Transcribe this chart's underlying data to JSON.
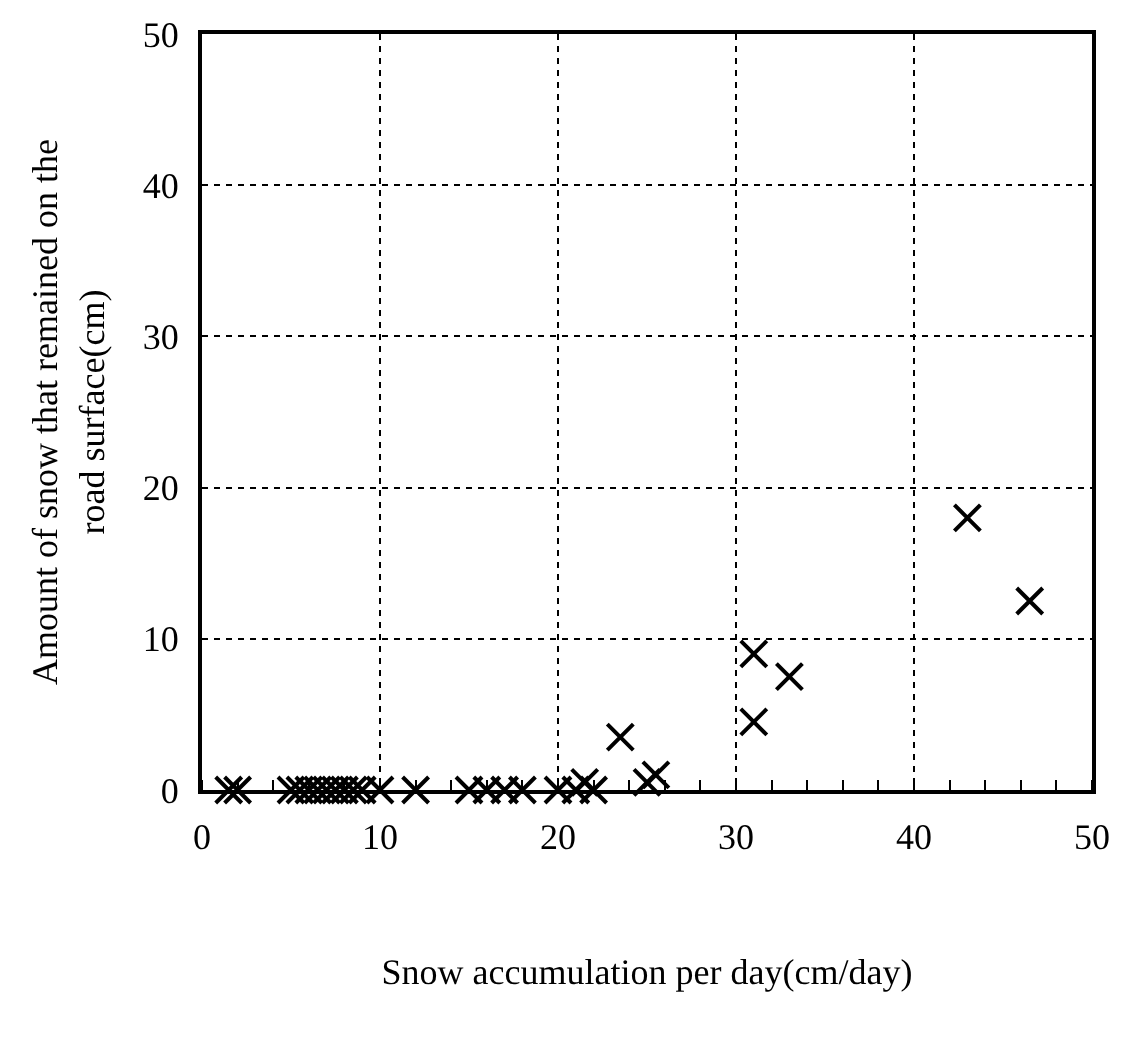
{
  "chart_data": {
    "type": "scatter",
    "xlabel": "Snow accumulation per day(cm/day)",
    "ylabel": "Amount of snow that remained on the road surface(cm)",
    "x": [
      1.5,
      2,
      5,
      5.5,
      6,
      6.5,
      7,
      7.5,
      8,
      8.5,
      9,
      10,
      12,
      15,
      16,
      17,
      18,
      20,
      21,
      22,
      21.5,
      23.5,
      25,
      25.5,
      31,
      31,
      33,
      43,
      46.5
    ],
    "values": [
      0,
      0,
      0,
      0,
      0,
      0,
      0,
      0,
      0,
      0,
      0,
      0,
      0,
      0,
      0,
      0,
      0,
      0,
      0,
      0,
      0.5,
      3.5,
      0.5,
      1,
      9,
      4.5,
      7.5,
      18,
      12.5
    ],
    "color": "#000000",
    "marker": "cross",
    "xlim": [
      0,
      50
    ],
    "ylim": [
      0,
      50
    ],
    "xticks": [
      0,
      10,
      20,
      30,
      40,
      50
    ],
    "yticks": [
      0,
      10,
      20,
      30,
      40,
      50
    ],
    "grid": true
  }
}
